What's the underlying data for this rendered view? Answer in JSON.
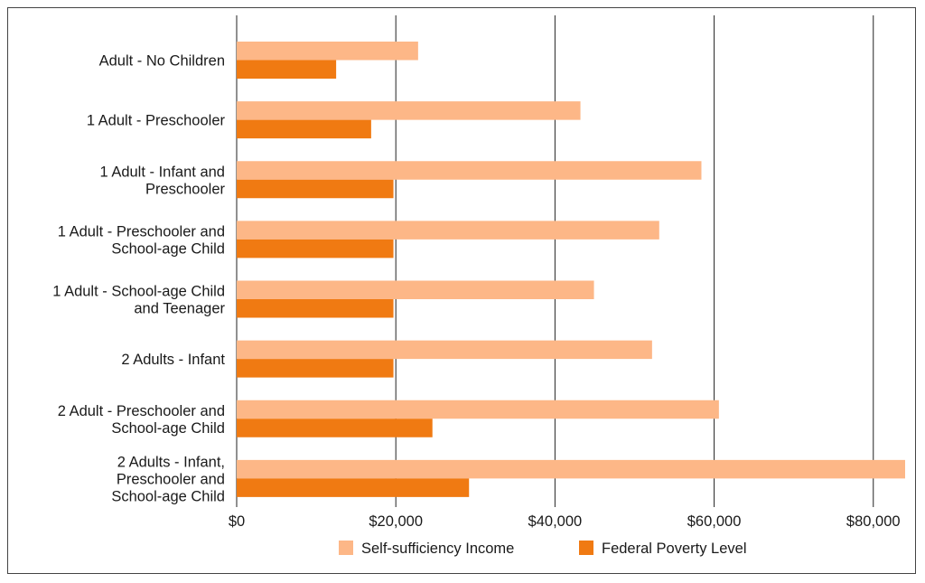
{
  "chart_data": {
    "type": "bar",
    "orientation": "horizontal",
    "title": "",
    "xlabel": "",
    "ylabel": "",
    "categories": [
      [
        "Adult - No Children"
      ],
      [
        "1 Adult - Preschooler"
      ],
      [
        "1 Adult - Infant and",
        "Preschooler"
      ],
      [
        "1 Adult - Preschooler and",
        "School-age Child"
      ],
      [
        "1 Adult - School-age Child",
        "and Teenager"
      ],
      [
        "2 Adults - Infant"
      ],
      [
        "2 Adult - Preschooler and",
        "School-age Child"
      ],
      [
        "2 Adults - Infant,",
        "Preschooler and",
        "School-age Child"
      ]
    ],
    "series": [
      {
        "name": "Self-sufficiency Income",
        "color": "#FDB787",
        "values": [
          22800,
          43200,
          58400,
          53100,
          44900,
          52200,
          60600,
          84000
        ]
      },
      {
        "name": "Federal Poverty Level",
        "color": "#F07A12",
        "values": [
          12500,
          16900,
          19700,
          19700,
          19700,
          19700,
          24600,
          29200
        ]
      }
    ],
    "xlim": [
      0,
      84000
    ],
    "xticks": [
      0,
      20000,
      40000,
      60000,
      80000
    ],
    "xtick_labels": [
      "$0",
      "$20,000",
      "$40,000",
      "$60,000",
      "$80,000"
    ],
    "grid": "vertical",
    "legend_position": "bottom"
  }
}
